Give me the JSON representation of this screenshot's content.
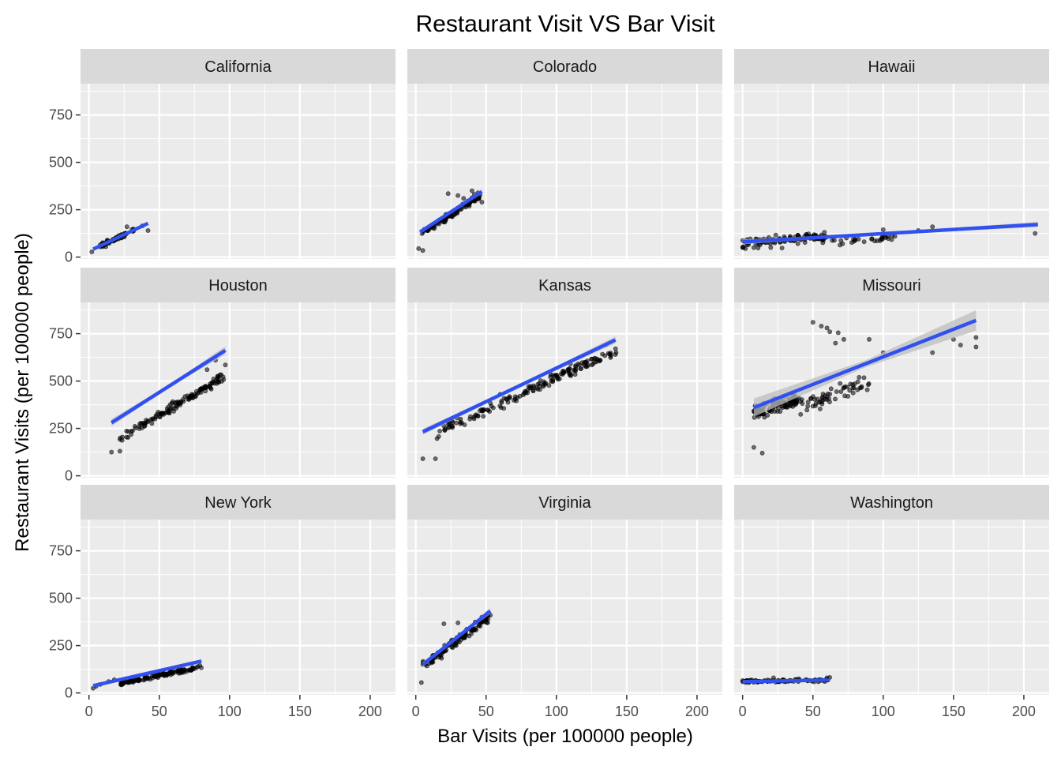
{
  "chart_data": {
    "type": "scatter",
    "title": "Restaurant Visit VS Bar Visit",
    "xlabel": "Bar Visits (per 100000 people)",
    "ylabel": "Restaurant Visits (per 100000 people)",
    "xlim": [
      -6,
      218
    ],
    "ylim": [
      -10,
      915
    ],
    "x_ticks": [
      0,
      50,
      100,
      150,
      200
    ],
    "y_ticks": [
      0,
      250,
      500,
      750
    ],
    "y_tick_labels": [
      "0",
      "250",
      "500",
      "750"
    ],
    "x_tick_labels": [
      "0",
      "50",
      "100",
      "150",
      "200"
    ],
    "grid": true,
    "layout": "facet 3x3",
    "colors": {
      "panel": "#ebebeb",
      "strip": "#d9d9d9",
      "grid": "#ffffff",
      "point": "#000000",
      "fit": "#3050f0",
      "band": "#bdbdbd"
    },
    "facets": [
      {
        "name": "California",
        "fit": [
          [
            3,
            42
          ],
          [
            42,
            178
          ]
        ],
        "band": 4,
        "clusters": [
          {
            "x": [
              8,
              32
            ],
            "y0": 60,
            "slope": 3.4,
            "spread": 18,
            "n": 70
          }
        ],
        "outliers": [
          [
            2,
            28
          ],
          [
            42,
            140
          ],
          [
            38,
            165
          ],
          [
            27,
            160
          ],
          [
            12,
            55
          ]
        ]
      },
      {
        "name": "Colorado",
        "fit": [
          [
            3,
            132
          ],
          [
            47,
            345
          ]
        ],
        "band": 7,
        "clusters": [
          {
            "x": [
              4,
              46
            ],
            "y0": 120,
            "slope": 4.9,
            "spread": 28,
            "n": 110
          }
        ],
        "outliers": [
          [
            2,
            45
          ],
          [
            5,
            35
          ],
          [
            23,
            335
          ],
          [
            30,
            325
          ],
          [
            47,
            290
          ],
          [
            34,
            310
          ],
          [
            40,
            350
          ]
        ]
      },
      {
        "name": "Hawaii",
        "fit": [
          [
            0,
            80
          ],
          [
            210,
            172
          ]
        ],
        "band": 8,
        "clusters": [
          {
            "x": [
              0,
              60
            ],
            "y0": 78,
            "slope": 0.5,
            "spread": 35,
            "n": 110
          },
          {
            "x": [
              60,
              110
            ],
            "y0": 80,
            "slope": 0.45,
            "spread": 25,
            "n": 30
          }
        ],
        "outliers": [
          [
            0,
            50
          ],
          [
            2,
            45
          ],
          [
            8,
            50
          ],
          [
            11,
            48
          ],
          [
            20,
            50
          ],
          [
            28,
            48
          ],
          [
            125,
            140
          ],
          [
            135,
            160
          ],
          [
            208,
            125
          ],
          [
            100,
            145
          ]
        ]
      },
      {
        "name": "Houston",
        "fit": [
          [
            16,
            280
          ],
          [
            97,
            662
          ]
        ],
        "band": 12,
        "clusters": [
          {
            "x": [
              22,
              96
            ],
            "y0": 195,
            "slope": 4.45,
            "spread": 32,
            "n": 140
          }
        ],
        "outliers": [
          [
            16,
            125
          ],
          [
            22,
            130
          ],
          [
            97,
            585
          ],
          [
            90,
            610
          ],
          [
            84,
            560
          ]
        ]
      },
      {
        "name": "Kansas",
        "fit": [
          [
            5,
            232
          ],
          [
            142,
            717
          ]
        ],
        "band": 10,
        "clusters": [
          {
            "x": [
              14,
              143
            ],
            "y0": 225,
            "slope": 3.4,
            "spread": 40,
            "n": 170
          }
        ],
        "outliers": [
          [
            5,
            90
          ],
          [
            14,
            90
          ],
          [
            142,
            640
          ],
          [
            135,
            690
          ],
          [
            110,
            590
          ],
          [
            60,
            430
          ]
        ]
      },
      {
        "name": "Missouri",
        "fit": [
          [
            8,
            360
          ],
          [
            166,
            820
          ]
        ],
        "band": 30,
        "clusters": [
          {
            "x": [
              8,
              40
            ],
            "y0": 330,
            "slope": 2.3,
            "spread": 55,
            "n": 110
          },
          {
            "x": [
              40,
              90
            ],
            "y0": 360,
            "slope": 2.7,
            "spread": 80,
            "n": 60
          }
        ],
        "outliers": [
          [
            8,
            150
          ],
          [
            14,
            120
          ],
          [
            50,
            810
          ],
          [
            56,
            790
          ],
          [
            62,
            760
          ],
          [
            68,
            755
          ],
          [
            72,
            720
          ],
          [
            90,
            720
          ],
          [
            100,
            650
          ],
          [
            135,
            650
          ],
          [
            150,
            720
          ],
          [
            155,
            690
          ],
          [
            166,
            730
          ],
          [
            166,
            680
          ],
          [
            60,
            780
          ],
          [
            66,
            700
          ]
        ]
      },
      {
        "name": "New York",
        "fit": [
          [
            3,
            38
          ],
          [
            80,
            168
          ]
        ],
        "band": 4,
        "clusters": [
          {
            "x": [
              22,
              80
            ],
            "y0": 50,
            "slope": 1.5,
            "spread": 15,
            "n": 140
          }
        ],
        "outliers": [
          [
            3,
            25
          ],
          [
            5,
            35
          ],
          [
            8,
            45
          ],
          [
            14,
            60
          ],
          [
            18,
            70
          ]
        ]
      },
      {
        "name": "Virginia",
        "fit": [
          [
            5,
            150
          ],
          [
            53,
            432
          ]
        ],
        "band": 9,
        "clusters": [
          {
            "x": [
              5,
              52
            ],
            "y0": 140,
            "slope": 5.6,
            "spread": 35,
            "n": 130
          }
        ],
        "outliers": [
          [
            4,
            55
          ],
          [
            53,
            410
          ],
          [
            20,
            365
          ],
          [
            30,
            370
          ],
          [
            47,
            400
          ]
        ]
      },
      {
        "name": "Washington",
        "fit": [
          [
            0,
            60
          ],
          [
            62,
            68
          ]
        ],
        "band": 3,
        "clusters": [
          {
            "x": [
              0,
              62
            ],
            "y0": 60,
            "slope": 0.12,
            "spread": 11,
            "n": 90
          }
        ],
        "outliers": [
          [
            0,
            65
          ],
          [
            1,
            62
          ],
          [
            60,
            80
          ],
          [
            62,
            82
          ],
          [
            22,
            80
          ],
          [
            40,
            75
          ]
        ]
      }
    ]
  }
}
